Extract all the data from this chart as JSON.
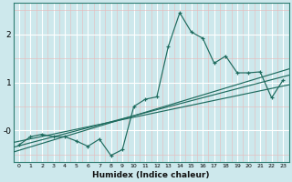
{
  "xlabel": "Humidex (Indice chaleur)",
  "bg_color": "#cde8ec",
  "grid_color": "#ffffff",
  "line_color": "#1e6b5e",
  "xlim": [
    -0.5,
    23.5
  ],
  "ylim": [
    -0.65,
    2.65
  ],
  "yticks": [
    0,
    1,
    2
  ],
  "ytick_labels": [
    "-0",
    "1",
    "2"
  ],
  "xtick_labels": [
    "0",
    "1",
    "2",
    "3",
    "4",
    "5",
    "6",
    "7",
    "8",
    "9",
    "10",
    "11",
    "12",
    "13",
    "14",
    "15",
    "16",
    "17",
    "18",
    "19",
    "20",
    "21",
    "22",
    "23"
  ],
  "main_series_x": [
    0,
    1,
    2,
    3,
    4,
    5,
    6,
    7,
    8,
    9,
    10,
    11,
    12,
    13,
    14,
    15,
    16,
    17,
    18,
    19,
    20,
    21,
    22,
    23
  ],
  "main_series_y": [
    -0.3,
    -0.13,
    -0.08,
    -0.13,
    -0.13,
    -0.22,
    -0.33,
    -0.18,
    -0.52,
    -0.4,
    0.5,
    0.65,
    0.7,
    1.75,
    2.45,
    2.05,
    1.92,
    1.4,
    1.55,
    1.2,
    1.2,
    1.22,
    0.68,
    1.05
  ],
  "reg_line_x": [
    -0.5,
    23.5
  ],
  "reg_line1_y": [
    -0.45,
    1.28
  ],
  "reg_line2_y": [
    -0.35,
    1.15
  ],
  "reg_line3_y": [
    -0.25,
    0.95
  ]
}
